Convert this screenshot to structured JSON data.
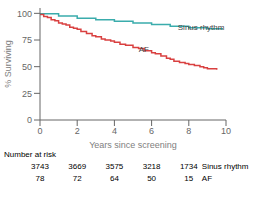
{
  "chart_data": {
    "type": "line",
    "xlabel": "Years since screening",
    "ylabel": "% Surviving",
    "xlim": [
      0,
      10
    ],
    "ylim": [
      0,
      105
    ],
    "xticks": [
      0,
      2,
      4,
      6,
      8,
      10
    ],
    "yticks": [
      0,
      25,
      50,
      75,
      100
    ],
    "grid": false,
    "line_style": "steps",
    "series": [
      {
        "name": "Sinus rhythm",
        "color": "#3aacac",
        "x": [
          0,
          1.0,
          2.0,
          3.0,
          4.0,
          5.0,
          6.0,
          7.0,
          8.0,
          9.0,
          9.8
        ],
        "values": [
          99.5,
          97.5,
          95.5,
          94.0,
          92.5,
          91.0,
          89.5,
          88.0,
          86.5,
          85.5,
          84.5
        ]
      },
      {
        "name": "AF",
        "color": "#d94040",
        "x": [
          0,
          0.2,
          0.4,
          0.6,
          0.8,
          1.0,
          1.2,
          1.4,
          1.6,
          1.8,
          2.0,
          2.2,
          2.5,
          2.8,
          3.0,
          3.3,
          3.5,
          3.8,
          4.0,
          4.3,
          4.6,
          5.0,
          5.3,
          5.6,
          6.0,
          6.2,
          6.5,
          6.8,
          7.0,
          7.2,
          7.5,
          7.8,
          8.0,
          8.3,
          8.6,
          8.8,
          9.0,
          9.5
        ],
        "values": [
          99,
          97,
          96,
          94,
          93,
          91,
          90,
          89,
          87,
          86,
          85,
          83,
          81,
          79,
          78,
          76,
          75,
          74,
          73,
          71,
          70,
          68,
          67,
          65,
          63,
          62,
          60,
          58,
          57,
          55,
          54,
          53,
          52,
          51,
          50,
          49,
          48,
          47
        ]
      }
    ],
    "annotations": [
      {
        "text": "Sinus rhythm",
        "x": 7.3,
        "y": 87.5
      },
      {
        "text": "AF",
        "x": 5.2,
        "y": 66.0
      }
    ],
    "number_at_risk": {
      "label": "Number at risk",
      "x": [
        0,
        2,
        4,
        6,
        8
      ],
      "rows": [
        {
          "name": "Sinus rhythm",
          "values": [
            3743,
            3669,
            3575,
            3218,
            1734
          ]
        },
        {
          "name": "AF",
          "values": [
            78,
            72,
            64,
            50,
            15
          ]
        }
      ]
    }
  }
}
